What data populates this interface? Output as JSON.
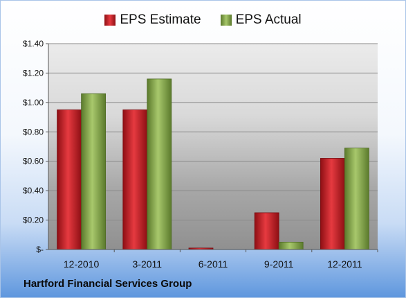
{
  "chart_data": {
    "type": "bar",
    "categories": [
      "12-2010",
      "3-2011",
      "6-2011",
      "9-2011",
      "12-2011"
    ],
    "series": [
      {
        "name": "EPS Estimate",
        "values": [
          0.95,
          0.95,
          0.01,
          0.25,
          0.62
        ],
        "color": "#d2212a"
      },
      {
        "name": "EPS Actual",
        "values": [
          1.06,
          1.16,
          0.0,
          0.05,
          0.69
        ],
        "color": "#8eb054"
      }
    ],
    "yticks": [
      {
        "value": 1.4,
        "label": "$1.40"
      },
      {
        "value": 1.2,
        "label": "$1.20"
      },
      {
        "value": 1.0,
        "label": "$1.00"
      },
      {
        "value": 0.8,
        "label": "$0.80"
      },
      {
        "value": 0.6,
        "label": "$0.60"
      },
      {
        "value": 0.4,
        "label": "$0.40"
      },
      {
        "value": 0.2,
        "label": "$0.20"
      },
      {
        "value": 0.0,
        "label": "$-"
      }
    ],
    "ylim": [
      0,
      1.4
    ],
    "grid": true,
    "legend_position": "top-center",
    "footer": "Hartford Financial Services Group"
  }
}
